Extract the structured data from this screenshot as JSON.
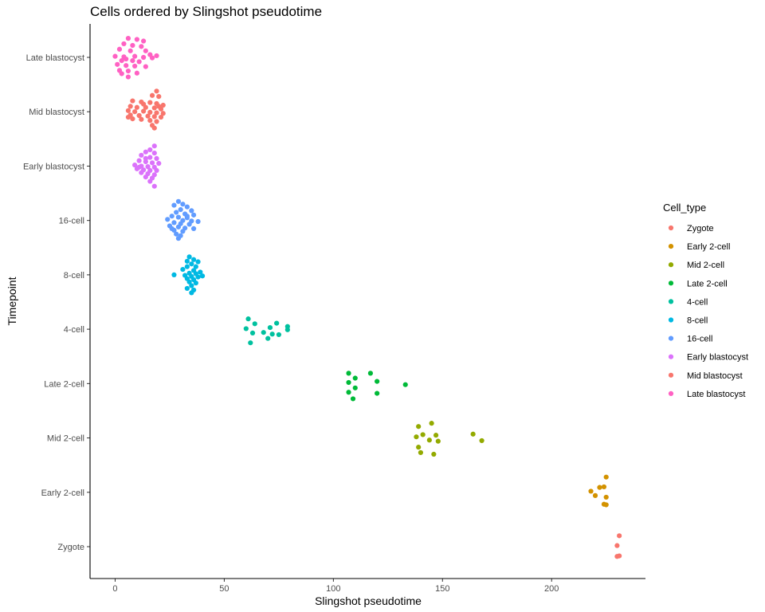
{
  "chart_data": {
    "type": "scatter",
    "title": "Cells ordered by Slingshot pseudotime",
    "xlabel": "Slingshot pseudotime",
    "ylabel": "Timepoint",
    "xlim": [
      -11.5,
      243
    ],
    "x_ticks": [
      0,
      50,
      100,
      150,
      200
    ],
    "categories": [
      "Zygote",
      "Early 2-cell",
      "Mid 2-cell",
      "Late 2-cell",
      "4-cell",
      "8-cell",
      "16-cell",
      "Early blastocyst",
      "Mid blastocyst",
      "Late blastocyst"
    ],
    "grid": false,
    "legend_position": "right",
    "legend_title": "Cell_type",
    "series": [
      {
        "name": "Zygote",
        "color": "#F8766D",
        "category": "Zygote",
        "points": [
          [
            231,
            0.2
          ],
          [
            230,
            0.02
          ],
          [
            231,
            -0.17
          ],
          [
            230,
            -0.18
          ]
        ]
      },
      {
        "name": "Early 2-cell",
        "color": "#D39200",
        "category": "Early 2-cell",
        "points": [
          [
            225,
            0.28
          ],
          [
            222,
            0.09
          ],
          [
            224,
            0.1
          ],
          [
            218,
            0.02
          ],
          [
            220,
            -0.06
          ],
          [
            225,
            -0.09
          ],
          [
            224,
            -0.22
          ],
          [
            225,
            -0.23
          ]
        ]
      },
      {
        "name": "Mid 2-cell",
        "color": "#93AA00",
        "category": "Mid 2-cell",
        "points": [
          [
            145,
            0.27
          ],
          [
            139,
            0.21
          ],
          [
            141,
            0.06
          ],
          [
            147,
            0.05
          ],
          [
            164,
            0.07
          ],
          [
            138,
            0.02
          ],
          [
            144,
            -0.04
          ],
          [
            148,
            -0.06
          ],
          [
            168,
            -0.05
          ],
          [
            139,
            -0.17
          ],
          [
            140,
            -0.27
          ],
          [
            146,
            -0.3
          ]
        ]
      },
      {
        "name": "Late 2-cell",
        "color": "#00BA38",
        "category": "Late 2-cell",
        "points": [
          [
            107,
            0.19
          ],
          [
            117,
            0.19
          ],
          [
            110,
            0.1
          ],
          [
            120,
            0.04
          ],
          [
            107,
            0.02
          ],
          [
            133,
            -0.02
          ],
          [
            110,
            -0.08
          ],
          [
            107,
            -0.16
          ],
          [
            120,
            -0.18
          ],
          [
            109,
            -0.28
          ]
        ]
      },
      {
        "name": "4-cell",
        "color": "#00C19F",
        "category": "4-cell",
        "points": [
          [
            61,
            0.19
          ],
          [
            64,
            0.1
          ],
          [
            74,
            0.11
          ],
          [
            60,
            0.01
          ],
          [
            71,
            0.03
          ],
          [
            79,
            0.05
          ],
          [
            79,
            -0.01
          ],
          [
            63,
            -0.07
          ],
          [
            68,
            -0.06
          ],
          [
            72,
            -0.09
          ],
          [
            75,
            -0.1
          ],
          [
            62,
            -0.25
          ],
          [
            70,
            -0.17
          ]
        ]
      },
      {
        "name": "8-cell",
        "color": "#00B9E3",
        "category": "8-cell",
        "points": [
          [
            27,
            0
          ],
          [
            34,
            0.33
          ],
          [
            36,
            0.28
          ],
          [
            33,
            0.25
          ],
          [
            38,
            0.24
          ],
          [
            35,
            0.2
          ],
          [
            33,
            0.15
          ],
          [
            37,
            0.15
          ],
          [
            31,
            0.1
          ],
          [
            36,
            0.08
          ],
          [
            39,
            0.05
          ],
          [
            34,
            0.03
          ],
          [
            37,
            0.02
          ],
          [
            32,
            -0.01
          ],
          [
            35,
            -0.03
          ],
          [
            38,
            -0.04
          ],
          [
            33,
            -0.07
          ],
          [
            36,
            -0.09
          ],
          [
            40,
            -0.02
          ],
          [
            34,
            -0.13
          ],
          [
            37,
            -0.15
          ],
          [
            35,
            -0.2
          ],
          [
            33,
            -0.25
          ],
          [
            36,
            -0.28
          ],
          [
            35,
            -0.33
          ]
        ]
      },
      {
        "name": "16-cell",
        "color": "#619CFF",
        "category": "16-cell",
        "points": [
          [
            29,
            0.35
          ],
          [
            31,
            0.3
          ],
          [
            27,
            0.28
          ],
          [
            33,
            0.25
          ],
          [
            30,
            0.2
          ],
          [
            35,
            0.18
          ],
          [
            28,
            0.15
          ],
          [
            32,
            0.12
          ],
          [
            36,
            0.1
          ],
          [
            26,
            0.08
          ],
          [
            29,
            0.06
          ],
          [
            33,
            0.05
          ],
          [
            24,
            0.02
          ],
          [
            31,
            0
          ],
          [
            35,
            -0.01
          ],
          [
            38,
            -0.02
          ],
          [
            27,
            -0.04
          ],
          [
            30,
            -0.06
          ],
          [
            34,
            -0.07
          ],
          [
            25,
            -0.1
          ],
          [
            29,
            -0.12
          ],
          [
            32,
            -0.14
          ],
          [
            36,
            -0.15
          ],
          [
            27,
            -0.18
          ],
          [
            31,
            -0.2
          ],
          [
            28,
            -0.25
          ],
          [
            30,
            -0.28
          ],
          [
            29,
            -0.33
          ],
          [
            33,
            0.08
          ],
          [
            26,
            -0.15
          ]
        ]
      },
      {
        "name": "Early blastocyst",
        "color": "#DB72FB",
        "category": "Early blastocyst",
        "points": [
          [
            18,
            0.37
          ],
          [
            16,
            0.3
          ],
          [
            14,
            0.26
          ],
          [
            18,
            0.24
          ],
          [
            12,
            0.2
          ],
          [
            16,
            0.16
          ],
          [
            19,
            0.14
          ],
          [
            11,
            0.1
          ],
          [
            14,
            0.08
          ],
          [
            17,
            0.06
          ],
          [
            20,
            0.05
          ],
          [
            9,
            0.02
          ],
          [
            12,
            0
          ],
          [
            15,
            -0.01
          ],
          [
            18,
            -0.02
          ],
          [
            10,
            -0.05
          ],
          [
            13,
            -0.07
          ],
          [
            16,
            -0.08
          ],
          [
            19,
            -0.08
          ],
          [
            12,
            -0.12
          ],
          [
            15,
            -0.14
          ],
          [
            18,
            -0.16
          ],
          [
            14,
            -0.2
          ],
          [
            17,
            -0.22
          ],
          [
            16,
            -0.28
          ],
          [
            18,
            -0.37
          ],
          [
            11,
            -0.02
          ],
          [
            14,
            0.14
          ]
        ]
      },
      {
        "name": "Mid blastocyst",
        "color": "#F8766D",
        "category": "Mid blastocyst",
        "points": [
          [
            19,
            0.38
          ],
          [
            17,
            0.3
          ],
          [
            20,
            0.28
          ],
          [
            8,
            0.2
          ],
          [
            12,
            0.18
          ],
          [
            16,
            0.17
          ],
          [
            19,
            0.15
          ],
          [
            22,
            0.12
          ],
          [
            7,
            0.1
          ],
          [
            10,
            0.08
          ],
          [
            14,
            0.08
          ],
          [
            18,
            0.07
          ],
          [
            21,
            0.05
          ],
          [
            6,
            0.02
          ],
          [
            9,
            0
          ],
          [
            13,
            0.01
          ],
          [
            16,
            -0.01
          ],
          [
            19,
            -0.02
          ],
          [
            22,
            -0.03
          ],
          [
            7,
            -0.06
          ],
          [
            11,
            -0.07
          ],
          [
            15,
            -0.08
          ],
          [
            18,
            -0.09
          ],
          [
            21,
            -0.1
          ],
          [
            8,
            -0.13
          ],
          [
            12,
            -0.14
          ],
          [
            16,
            -0.16
          ],
          [
            19,
            -0.18
          ],
          [
            17,
            -0.25
          ],
          [
            18,
            -0.3
          ],
          [
            6,
            -0.1
          ],
          [
            13,
            0.14
          ],
          [
            20,
            0.1
          ]
        ]
      },
      {
        "name": "Late blastocyst",
        "color": "#FF61C3",
        "category": "Late blastocyst",
        "points": [
          [
            6,
            0.35
          ],
          [
            10,
            0.33
          ],
          [
            13,
            0.3
          ],
          [
            4,
            0.25
          ],
          [
            8,
            0.22
          ],
          [
            12,
            0.2
          ],
          [
            2,
            0.15
          ],
          [
            7,
            0.12
          ],
          [
            14,
            0.12
          ],
          [
            19,
            0.03
          ],
          [
            0,
            0.02
          ],
          [
            4,
            0.01
          ],
          [
            9,
            0.02
          ],
          [
            13,
            0.0
          ],
          [
            17,
            -0.01
          ],
          [
            3,
            -0.06
          ],
          [
            8,
            -0.06
          ],
          [
            11,
            -0.08
          ],
          [
            1,
            -0.13
          ],
          [
            5,
            -0.15
          ],
          [
            9,
            -0.16
          ],
          [
            14,
            -0.17
          ],
          [
            2,
            -0.24
          ],
          [
            6,
            -0.25
          ],
          [
            3,
            -0.3
          ],
          [
            6,
            -0.36
          ],
          [
            10,
            -0.29
          ],
          [
            16,
            0.05
          ],
          [
            5,
            -0.03
          ]
        ]
      }
    ]
  }
}
